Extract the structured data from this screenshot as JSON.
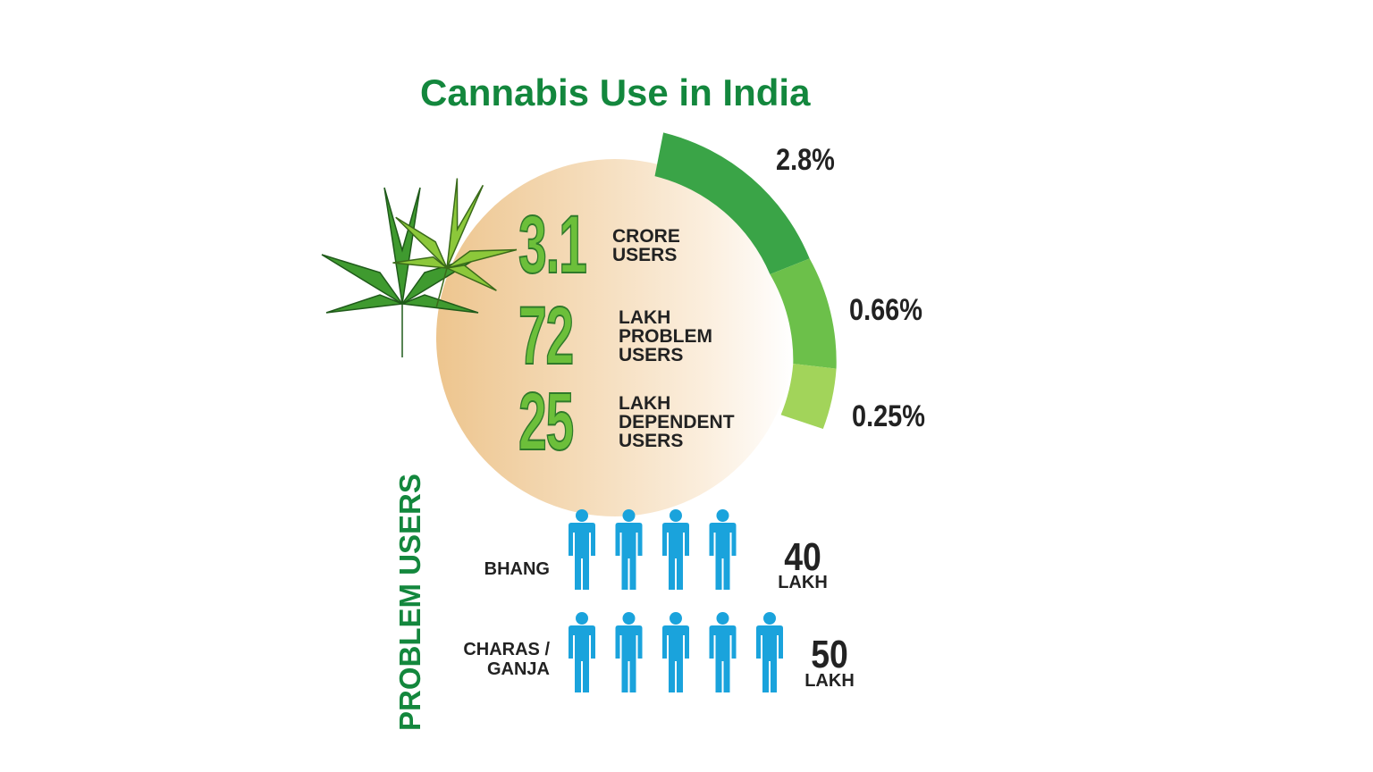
{
  "title": "Cannabis Use in India",
  "stats": [
    {
      "number": "3.1",
      "label": [
        "CRORE",
        "USERS"
      ],
      "percent": "2.8%"
    },
    {
      "number": "72",
      "label": [
        "LAKH",
        "PROBLEM",
        "USERS"
      ],
      "percent": "0.66%"
    },
    {
      "number": "25",
      "label": [
        "LAKH",
        "DEPENDENT",
        "USERS"
      ],
      "percent": "0.25%"
    }
  ],
  "problem_users": {
    "heading": "PROBLEM USERS",
    "rows": [
      {
        "label": [
          "BHANG"
        ],
        "value": "40",
        "unit": "LAKH"
      },
      {
        "label": [
          "CHARAS /",
          "GANJA"
        ],
        "value": "50",
        "unit": "LAKH"
      }
    ]
  }
}
